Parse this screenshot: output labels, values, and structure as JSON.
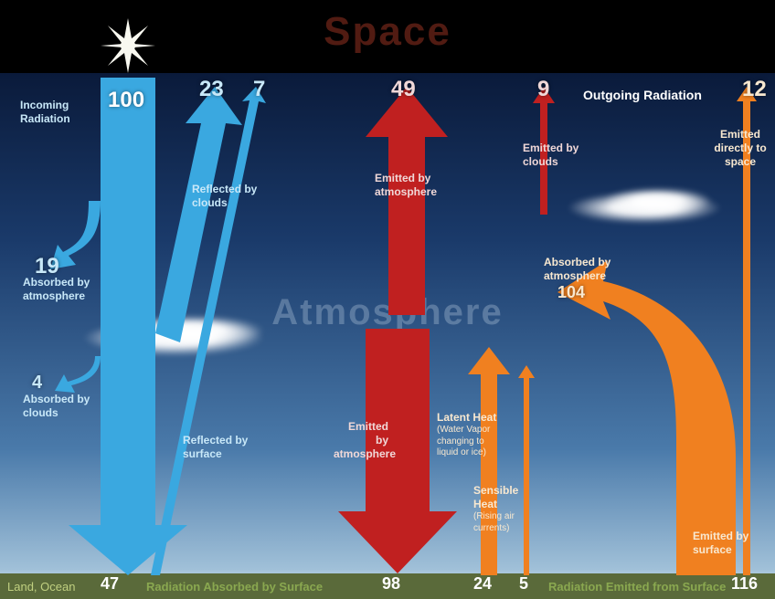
{
  "colors": {
    "solar": "#3aa8e0",
    "solar_text": "#c8e8f8",
    "ir": "#c02020",
    "ir_text": "#f0d8d8",
    "heat": "#f08020",
    "heat_text": "#f8e8d0",
    "white": "#ffffff",
    "ground_text": "#c0d080",
    "ground_value": "#ffffff"
  },
  "titles": {
    "space": "Space",
    "atmosphere": "Atmosphere"
  },
  "outgoing_label": "Outgoing Radiation",
  "ground": {
    "land_ocean": "Land, Ocean",
    "absorbed_label": "Radiation Absorbed by Surface",
    "emitted_label": "Radiation Emitted from Surface",
    "absorbed_solar": 47,
    "absorbed_ir": 98,
    "latent": 24,
    "sensible": 5,
    "emitted_surface": 116
  },
  "flows": {
    "incoming": {
      "value": 100,
      "label": "Incoming\nRadiation"
    },
    "reflected_clouds": {
      "value": 23,
      "label": "Reflected by\nclouds"
    },
    "reflected_surface": {
      "value": 7,
      "label": "Reflected by\nsurface"
    },
    "absorbed_atmo_solar": {
      "value": 19,
      "label": "Absorbed by\natmosphere"
    },
    "absorbed_clouds_solar": {
      "value": 4,
      "label": "Absorbed by\nclouds"
    },
    "emitted_atmo_up": {
      "value": 49,
      "label": "Emitted by\natmosphere"
    },
    "emitted_atmo_down": {
      "label": "Emitted by\natmosphere"
    },
    "emitted_clouds": {
      "value": 9,
      "label": "Emitted by\nclouds"
    },
    "emitted_direct": {
      "value": 12,
      "label": "Emitted\ndirectly to\nspace"
    },
    "latent_heat": {
      "label": "Latent Heat",
      "sublabel": "(Water Vapor\nchanging to\nliquid or ice)"
    },
    "sensible_heat": {
      "label": "Sensible\nHeat",
      "sublabel": "(Rising air\ncurrents)"
    },
    "absorbed_atmo_ir": {
      "value": 104,
      "label": "Absorbed by\natmosphere"
    },
    "emitted_surface": {
      "label": "Emitted by\nsurface"
    }
  }
}
